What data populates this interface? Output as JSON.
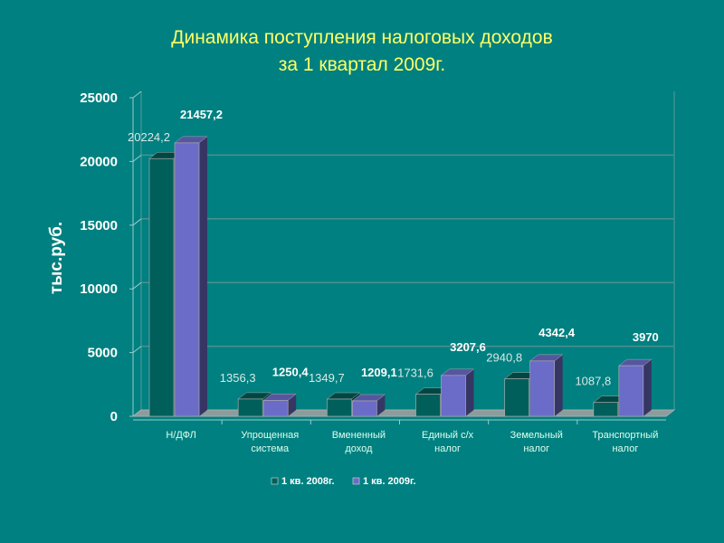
{
  "chart_data": {
    "type": "bar",
    "title": [
      "Динамика поступления налоговых доходов",
      "за 1 квартал 2009г."
    ],
    "ylabel": "тыс.руб.",
    "xlabel": "",
    "ylim": [
      0,
      25000
    ],
    "yticks": [
      0,
      5000,
      10000,
      15000,
      20000,
      25000
    ],
    "grid": true,
    "legend_position": "bottom",
    "categories": [
      [
        "Н/ДФЛ"
      ],
      [
        "Упрощенная",
        "система"
      ],
      [
        "Вмененный",
        "доход"
      ],
      [
        "Единый с/х",
        "налог"
      ],
      [
        "Земельный",
        "налог"
      ],
      [
        "Транспортный",
        "налог"
      ]
    ],
    "series": [
      {
        "name": "1 кв. 2008г.",
        "color": "#005f5a",
        "values": [
          20224.2,
          1356.3,
          1349.7,
          1731.6,
          2940.8,
          1087.8
        ],
        "labels": [
          "20224,2",
          "1356,3",
          "1349,7",
          "1731,6",
          "2940,8",
          "1087,8"
        ]
      },
      {
        "name": "1 кв. 2009г.",
        "color": "#6b6bc8",
        "values": [
          21457.2,
          1250.4,
          1209.1,
          3207.6,
          4342.4,
          3970
        ],
        "labels": [
          "21457,2",
          "1250,4",
          "1209,1",
          "3207,6",
          "4342,4",
          "3970"
        ]
      }
    ]
  }
}
